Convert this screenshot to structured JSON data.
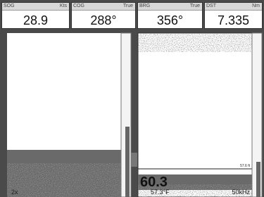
{
  "header": {
    "fields": [
      {
        "label": "SOG",
        "unit": "Kts",
        "value": "28.9"
      },
      {
        "label": "COG",
        "unit": "True",
        "value": "288°"
      },
      {
        "label": "BRG",
        "unit": "True",
        "value": "356°"
      },
      {
        "label": "DST",
        "unit": "Nm",
        "value": "7.335"
      }
    ]
  },
  "left_panel": {
    "zoom": "2x"
  },
  "right_panel": {
    "depth": "60.3",
    "temperature": "57.3°F",
    "frequency": "50kHz",
    "range_marker": "57.6 ft"
  }
}
